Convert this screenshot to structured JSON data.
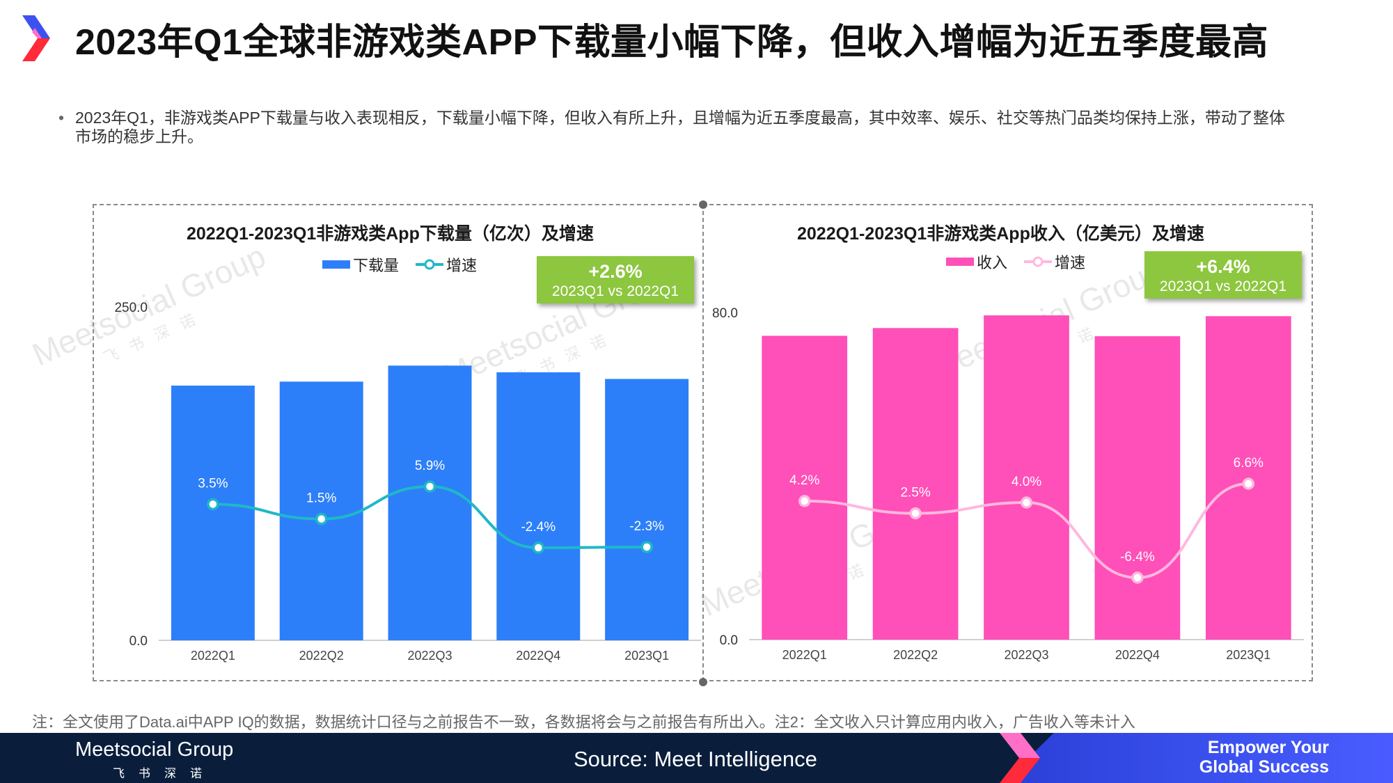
{
  "page_title": "2023年Q1全球非游戏类APP下载量小幅下降，但收入增幅为近五季度最高",
  "bullet_text": "2023年Q1，非游戏类APP下载量与收入表现相反，下载量小幅下降，但收入有所上升，且增幅为近五季度最高，其中效率、娱乐、社交等热门品类均保持上涨，带动了整体市场的稳步上升。",
  "footnote": "注：全文使用了Data.ai中APP IQ的数据，数据统计口径与之前报告不一致，各数据将会与之前报告有所出入。注2：全文收入只计算应用内收入，广告收入等未计入",
  "footer": {
    "brand": "Meetsocial Group",
    "brand_sub": "飞书深诺",
    "source": "Source:   Meet Intelligence",
    "slogan_line1": "Empower Your",
    "slogan_line2": "Global Success"
  },
  "watermark": {
    "text": "Meetsocial Group",
    "sub": "飞书深诺"
  },
  "colors": {
    "downloads_bar": "#2d7ff9",
    "downloads_line": "#1fb8c8",
    "revenue_bar": "#ff4fb8",
    "revenue_line": "#ffb8df",
    "callout": "#8dc63f"
  },
  "chart_data": [
    {
      "type": "bar",
      "title": "2022Q1-2023Q1非游戏类App下载量（亿次）及增速",
      "categories": [
        "2022Q1",
        "2022Q2",
        "2022Q3",
        "2022Q4",
        "2023Q1"
      ],
      "series": [
        {
          "name": "下载量",
          "type": "bar",
          "values": [
            191,
            194,
            206,
            201,
            196
          ]
        },
        {
          "name": "增速",
          "type": "line",
          "values": [
            3.5,
            1.5,
            5.9,
            -2.4,
            -2.3
          ],
          "labels": [
            "3.5%",
            "1.5%",
            "5.9%",
            "-2.4%",
            "-2.3%"
          ]
        }
      ],
      "ylim": [
        0,
        250
      ],
      "ytick_labels": [
        "0.0",
        "250.0"
      ],
      "legend": "top-center",
      "callout": {
        "value": "+2.6%",
        "text": "2023Q1 vs 2022Q1"
      }
    },
    {
      "type": "bar",
      "title": "2022Q1-2023Q1非游戏类App收入（亿美元）及增速",
      "categories": [
        "2022Q1",
        "2022Q2",
        "2022Q3",
        "2022Q4",
        "2023Q1"
      ],
      "series": [
        {
          "name": "收入",
          "type": "bar",
          "values": [
            74.3,
            76.2,
            79.3,
            74.2,
            79.1
          ]
        },
        {
          "name": "增速",
          "type": "line",
          "values": [
            4.2,
            2.5,
            4.0,
            -6.4,
            6.6
          ],
          "labels": [
            "4.2%",
            "2.5%",
            "4.0%",
            "-6.4%",
            "6.6%"
          ]
        }
      ],
      "ylim": [
        0,
        80
      ],
      "ytick_labels": [
        "0.0",
        "80.0"
      ],
      "legend": "top-center",
      "callout": {
        "value": "+6.4%",
        "text": "2023Q1 vs 2022Q1"
      }
    }
  ]
}
